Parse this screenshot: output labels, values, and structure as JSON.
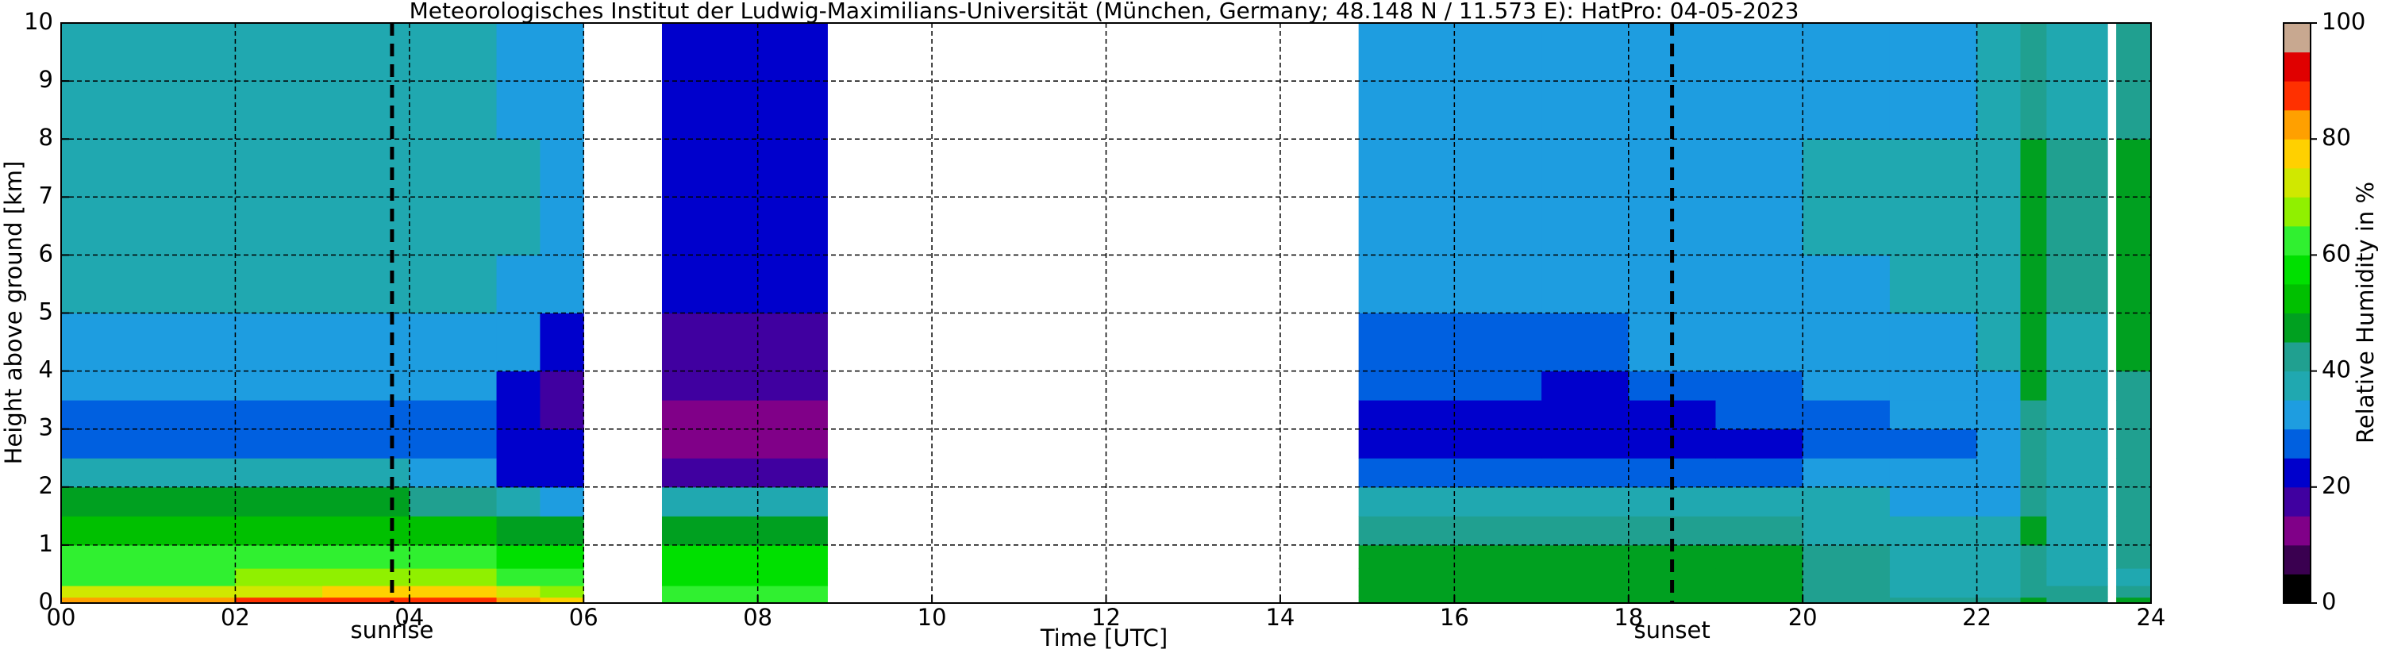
{
  "chart_data": {
    "type": "heatmap",
    "title": "Meteorologisches Institut der Ludwig-Maximilians-Universität (München, Germany; 48.148 N / 11.573 E):    HatPro: 04-05-2023",
    "x_label": "Time [UTC]",
    "y_label": "Height above ground [km]",
    "colorbar_label": "Relative Humidity in %",
    "x_edges": [
      0,
      1,
      2,
      3,
      4,
      5,
      5.5,
      6,
      6.9,
      7.9,
      8.8,
      14.9,
      16,
      17,
      18,
      19,
      20,
      21,
      22,
      22.5,
      22.8,
      23.5,
      23.6,
      24
    ],
    "y_edges": [
      0,
      0.1,
      0.3,
      0.6,
      1,
      1.5,
      2,
      2.5,
      3,
      3.5,
      4,
      5,
      6,
      8,
      10
    ],
    "values": [
      [
        82,
        84,
        86,
        88,
        86,
        80,
        75,
        null,
        62,
        60,
        null,
        45,
        45,
        45,
        45,
        45,
        42,
        42,
        42,
        45,
        44,
        null,
        45
      ],
      [
        72,
        72,
        74,
        76,
        75,
        70,
        68,
        null,
        60,
        60,
        null,
        45,
        46,
        46,
        46,
        46,
        40,
        38,
        38,
        42,
        40,
        null,
        40
      ],
      [
        64,
        64,
        65,
        66,
        65,
        63,
        62,
        null,
        58,
        58,
        null,
        47,
        47,
        47,
        47,
        47,
        40,
        36,
        36,
        42,
        38,
        null,
        38
      ],
      [
        60,
        60,
        60,
        60,
        60,
        58,
        56,
        null,
        55,
        55,
        null,
        46,
        46,
        46,
        46,
        46,
        40,
        36,
        36,
        44,
        38,
        null,
        40
      ],
      [
        50,
        50,
        50,
        50,
        50,
        48,
        46,
        null,
        46,
        45,
        null,
        42,
        42,
        42,
        40,
        40,
        38,
        36,
        36,
        46,
        38,
        null,
        42
      ],
      [
        46,
        46,
        45,
        45,
        44,
        36,
        30,
        null,
        36,
        35,
        null,
        36,
        36,
        36,
        36,
        36,
        35,
        34,
        34,
        44,
        36,
        null,
        40
      ],
      [
        36,
        36,
        36,
        36,
        34,
        22,
        24,
        null,
        18,
        18,
        null,
        27,
        27,
        26,
        28,
        29,
        30,
        31,
        32,
        44,
        36,
        null,
        40
      ],
      [
        29,
        29,
        29,
        29,
        28,
        20,
        20,
        null,
        14,
        13,
        null,
        22,
        21,
        20,
        22,
        24,
        26,
        28,
        32,
        44,
        36,
        null,
        40
      ],
      [
        28,
        28,
        28,
        28,
        28,
        20,
        19,
        null,
        14,
        14,
        null,
        23,
        22,
        21,
        24,
        26,
        28,
        30,
        33,
        44,
        37,
        null,
        40
      ],
      [
        30,
        30,
        30,
        30,
        30,
        22,
        19,
        null,
        17,
        16,
        null,
        26,
        25,
        24,
        27,
        28,
        30,
        31,
        34,
        45,
        38,
        null,
        41
      ],
      [
        34,
        34,
        34,
        34,
        34,
        30,
        24,
        null,
        19,
        18,
        null,
        29,
        29,
        29,
        30,
        31,
        32,
        33,
        36,
        46,
        39,
        null,
        45
      ],
      [
        37,
        37,
        37,
        37,
        37,
        33,
        30,
        null,
        22,
        21,
        null,
        31,
        31,
        31,
        32,
        33,
        34,
        35,
        38,
        47,
        40,
        null,
        46
      ],
      [
        38,
        38,
        38,
        38,
        38,
        36,
        33,
        null,
        24,
        23,
        null,
        32,
        32,
        32,
        33,
        34,
        35,
        36,
        38,
        47,
        40,
        null,
        46
      ],
      [
        35,
        35,
        35,
        35,
        35,
        32,
        30,
        null,
        22,
        21,
        null,
        30,
        30,
        30,
        31,
        32,
        33,
        34,
        36,
        44,
        38,
        null,
        42
      ]
    ],
    "xlim": [
      0,
      24
    ],
    "ylim": [
      0,
      10
    ],
    "zlim": [
      0,
      100
    ],
    "xticks": [
      {
        "value": 0,
        "label": "00"
      },
      {
        "value": 2,
        "label": "02"
      },
      {
        "value": 4,
        "label": "04"
      },
      {
        "value": 6,
        "label": "06"
      },
      {
        "value": 8,
        "label": "08"
      },
      10,
      12,
      14,
      16,
      18,
      20,
      22,
      24
    ],
    "yticks": [
      0,
      1,
      2,
      3,
      4,
      5,
      6,
      7,
      8,
      9,
      10
    ],
    "zticks": [
      0,
      20,
      40,
      60,
      80,
      100
    ],
    "grid": true,
    "colormap": [
      "#000000",
      "#3a0050",
      "#800088",
      "#4000a0",
      "#0000cc",
      "#0060e0",
      "#1e9de0",
      "#20a8b0",
      "#20a090",
      "#00a020",
      "#00c000",
      "#00e000",
      "#30f030",
      "#90f000",
      "#d0e800",
      "#ffd000",
      "#ffa000",
      "#ff3000",
      "#e00000",
      "#c8a890"
    ],
    "annotations": [
      {
        "x": 3.8,
        "text": "sunrise"
      },
      {
        "x": 18.5,
        "text": "sunset"
      }
    ]
  }
}
